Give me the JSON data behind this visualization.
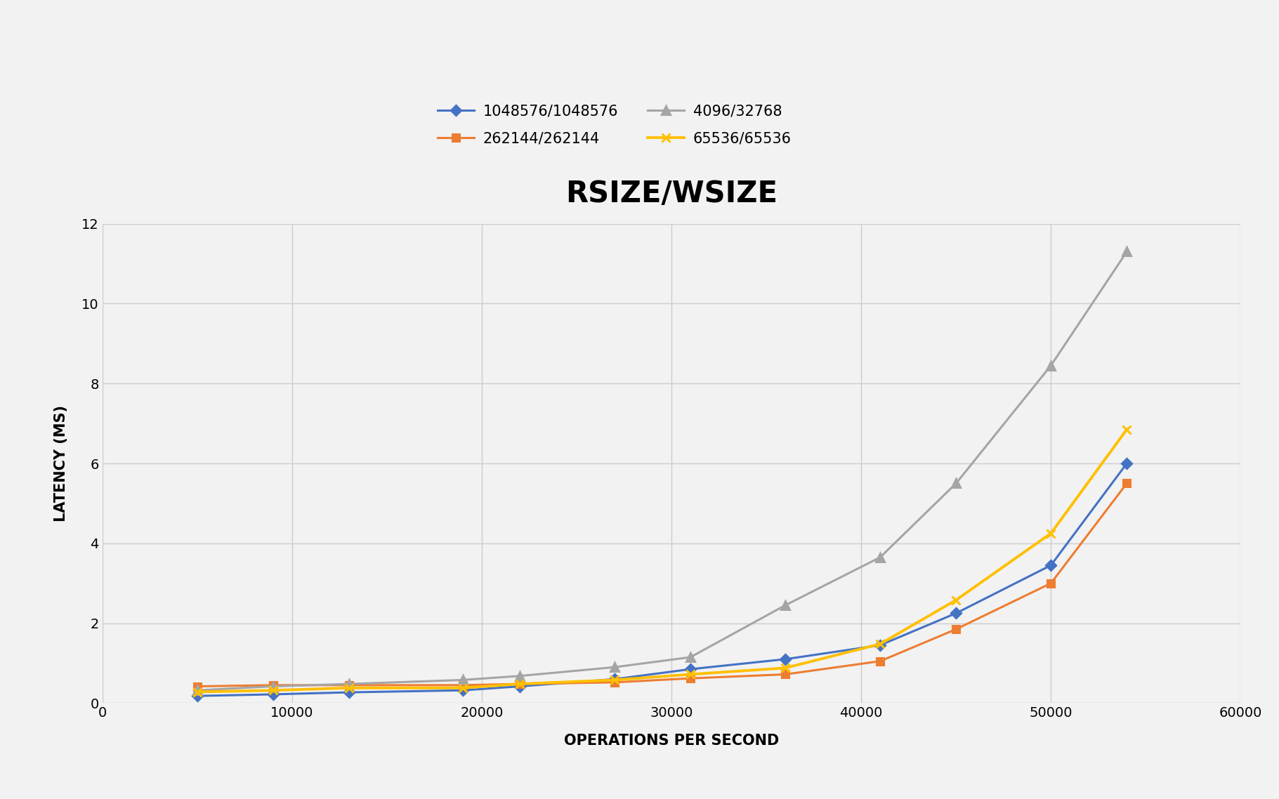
{
  "title": "RSIZE/WSIZE",
  "xlabel": "OPERATIONS PER SECOND",
  "ylabel": "LATENCY (MS)",
  "xlim": [
    0,
    60000
  ],
  "ylim": [
    0,
    12
  ],
  "yticks": [
    0,
    2,
    4,
    6,
    8,
    10,
    12
  ],
  "xticks": [
    0,
    10000,
    20000,
    30000,
    40000,
    50000,
    60000
  ],
  "series": [
    {
      "label": "1048576/1048576",
      "color": "#4472C4",
      "marker": "D",
      "markersize": 7,
      "linewidth": 2.2,
      "x": [
        5000,
        9000,
        13000,
        19000,
        22000,
        27000,
        31000,
        36000,
        41000,
        45000,
        50000,
        54000
      ],
      "y": [
        0.18,
        0.22,
        0.27,
        0.32,
        0.42,
        0.6,
        0.85,
        1.1,
        1.45,
        2.25,
        3.45,
        6.0
      ]
    },
    {
      "label": "262144/262144",
      "color": "#ED7D31",
      "marker": "s",
      "markersize": 7,
      "linewidth": 2.2,
      "x": [
        5000,
        9000,
        13000,
        19000,
        22000,
        27000,
        31000,
        36000,
        41000,
        45000,
        50000,
        54000
      ],
      "y": [
        0.42,
        0.45,
        0.45,
        0.45,
        0.48,
        0.52,
        0.62,
        0.72,
        1.05,
        1.85,
        3.0,
        5.5
      ]
    },
    {
      "label": "4096/32768",
      "color": "#A5A5A5",
      "marker": "^",
      "markersize": 9,
      "linewidth": 2.2,
      "x": [
        5000,
        9000,
        13000,
        19000,
        22000,
        27000,
        31000,
        36000,
        41000,
        45000,
        50000,
        54000
      ],
      "y": [
        0.32,
        0.42,
        0.48,
        0.58,
        0.68,
        0.9,
        1.15,
        2.45,
        3.65,
        5.5,
        8.45,
        11.3
      ]
    },
    {
      "label": "65536/65536",
      "color": "#FFC000",
      "marker": "x",
      "markersize": 9,
      "linewidth": 2.8,
      "x": [
        5000,
        9000,
        13000,
        19000,
        22000,
        27000,
        31000,
        36000,
        41000,
        45000,
        50000,
        54000
      ],
      "y": [
        0.28,
        0.32,
        0.38,
        0.38,
        0.48,
        0.58,
        0.72,
        0.88,
        1.48,
        2.58,
        4.25,
        6.85
      ]
    }
  ],
  "background_color": "#f2f2f2",
  "plot_bg_color": "#f2f2f2",
  "grid_color": "#cccccc",
  "title_fontsize": 30,
  "label_fontsize": 15,
  "tick_fontsize": 14,
  "legend_fontsize": 15
}
